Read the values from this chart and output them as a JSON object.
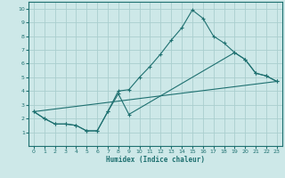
{
  "xlabel": "Humidex (Indice chaleur)",
  "xlim": [
    -0.5,
    23.5
  ],
  "ylim": [
    0,
    10.5
  ],
  "xticks": [
    0,
    1,
    2,
    3,
    4,
    5,
    6,
    7,
    8,
    9,
    10,
    11,
    12,
    13,
    14,
    15,
    16,
    17,
    18,
    19,
    20,
    21,
    22,
    23
  ],
  "yticks": [
    1,
    2,
    3,
    4,
    5,
    6,
    7,
    8,
    9,
    10
  ],
  "background_color": "#cde8e8",
  "grid_color": "#aacece",
  "line_color": "#1e7070",
  "line1": {
    "x": [
      0,
      1,
      2,
      3,
      4,
      5,
      6,
      7,
      8,
      9,
      10,
      11,
      12,
      13,
      14,
      15,
      16,
      17,
      18,
      19,
      20,
      21,
      22,
      23
    ],
    "y": [
      2.5,
      2.0,
      1.6,
      1.6,
      1.5,
      1.1,
      1.1,
      2.5,
      4.0,
      4.1,
      5.0,
      5.8,
      6.7,
      7.7,
      8.6,
      9.9,
      9.3,
      8.0,
      7.5,
      6.8,
      6.3,
      5.3,
      5.1,
      4.7
    ]
  },
  "line2": {
    "x": [
      0,
      1,
      2,
      3,
      4,
      5,
      6,
      7,
      8,
      9,
      19,
      20,
      21,
      22,
      23
    ],
    "y": [
      2.5,
      2.0,
      1.6,
      1.6,
      1.5,
      1.1,
      1.1,
      2.5,
      3.8,
      2.3,
      6.8,
      6.3,
      5.3,
      5.1,
      4.7
    ]
  },
  "line3": {
    "x": [
      0,
      23
    ],
    "y": [
      2.5,
      4.7
    ]
  }
}
